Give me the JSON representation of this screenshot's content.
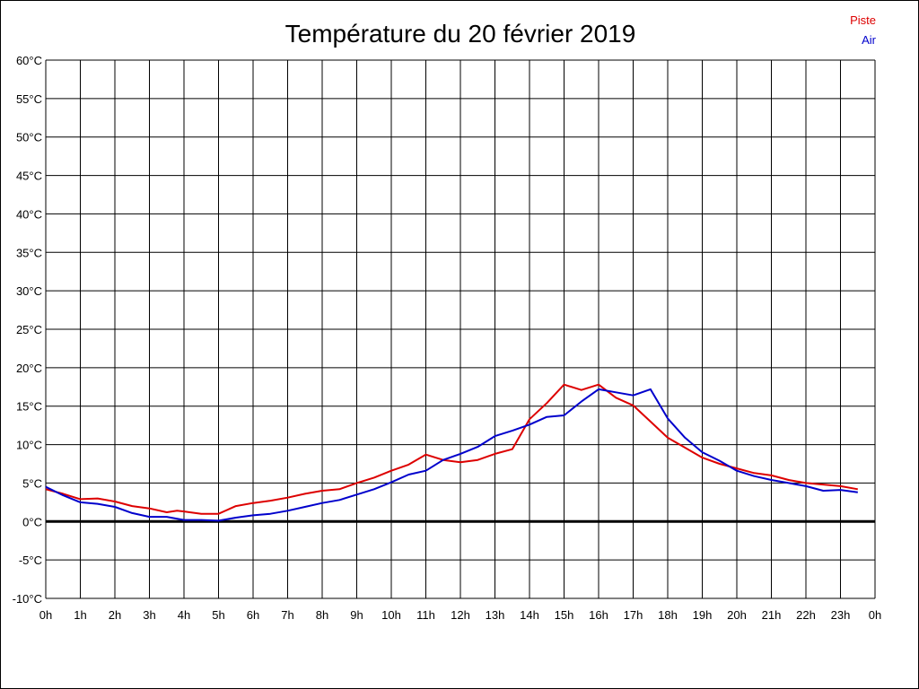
{
  "chart_data": {
    "type": "line",
    "title": "Température du 20 février 2019",
    "x_tick_labels": [
      "0h",
      "1h",
      "2h",
      "3h",
      "4h",
      "5h",
      "6h",
      "7h",
      "8h",
      "9h",
      "10h",
      "11h",
      "12h",
      "13h",
      "14h",
      "15h",
      "16h",
      "17h",
      "18h",
      "19h",
      "20h",
      "21h",
      "22h",
      "23h",
      "0h"
    ],
    "y_tick_labels": [
      "60°C",
      "55°C",
      "50°C",
      "45°C",
      "40°C",
      "35°C",
      "30°C",
      "25°C",
      "20°C",
      "15°C",
      "10°C",
      "5°C",
      "0°C",
      "-5°C",
      "-10°C"
    ],
    "xlim": [
      0,
      24
    ],
    "ylim": [
      -10,
      60
    ],
    "grid": true,
    "legend_position": "top-right",
    "zero_line": true,
    "series": [
      {
        "name": "Piste",
        "color": "#dd0000",
        "points": [
          [
            0.0,
            4.2
          ],
          [
            0.5,
            3.6
          ],
          [
            1.0,
            2.9
          ],
          [
            1.5,
            3.0
          ],
          [
            2.0,
            2.6
          ],
          [
            2.5,
            2.0
          ],
          [
            3.0,
            1.7
          ],
          [
            3.5,
            1.2
          ],
          [
            3.8,
            1.4
          ],
          [
            4.0,
            1.3
          ],
          [
            4.5,
            1.0
          ],
          [
            5.0,
            1.0
          ],
          [
            5.5,
            2.0
          ],
          [
            6.0,
            2.4
          ],
          [
            6.5,
            2.7
          ],
          [
            7.0,
            3.1
          ],
          [
            7.5,
            3.6
          ],
          [
            8.0,
            4.0
          ],
          [
            8.5,
            4.2
          ],
          [
            9.0,
            5.0
          ],
          [
            9.5,
            5.7
          ],
          [
            10.0,
            6.6
          ],
          [
            10.5,
            7.4
          ],
          [
            11.0,
            8.7
          ],
          [
            11.5,
            8.0
          ],
          [
            12.0,
            7.7
          ],
          [
            12.5,
            8.0
          ],
          [
            13.0,
            8.8
          ],
          [
            13.5,
            9.4
          ],
          [
            14.0,
            13.3
          ],
          [
            14.5,
            15.4
          ],
          [
            15.0,
            17.8
          ],
          [
            15.5,
            17.1
          ],
          [
            16.0,
            17.8
          ],
          [
            16.5,
            16.1
          ],
          [
            17.0,
            15.1
          ],
          [
            17.5,
            13.0
          ],
          [
            18.0,
            10.9
          ],
          [
            18.5,
            9.6
          ],
          [
            19.0,
            8.3
          ],
          [
            19.5,
            7.5
          ],
          [
            20.0,
            6.9
          ],
          [
            20.5,
            6.3
          ],
          [
            21.0,
            6.0
          ],
          [
            21.5,
            5.4
          ],
          [
            22.0,
            5.0
          ],
          [
            22.5,
            4.8
          ],
          [
            23.0,
            4.6
          ],
          [
            23.5,
            4.2
          ]
        ]
      },
      {
        "name": "Air",
        "color": "#0000cc",
        "points": [
          [
            0.0,
            4.5
          ],
          [
            0.5,
            3.4
          ],
          [
            1.0,
            2.5
          ],
          [
            1.5,
            2.3
          ],
          [
            2.0,
            1.9
          ],
          [
            2.5,
            1.1
          ],
          [
            3.0,
            0.6
          ],
          [
            3.5,
            0.6
          ],
          [
            4.0,
            0.2
          ],
          [
            4.5,
            0.2
          ],
          [
            5.0,
            0.1
          ],
          [
            5.5,
            0.5
          ],
          [
            6.0,
            0.8
          ],
          [
            6.5,
            1.0
          ],
          [
            7.0,
            1.4
          ],
          [
            7.5,
            1.9
          ],
          [
            8.0,
            2.4
          ],
          [
            8.5,
            2.8
          ],
          [
            9.0,
            3.5
          ],
          [
            9.5,
            4.2
          ],
          [
            10.0,
            5.1
          ],
          [
            10.5,
            6.1
          ],
          [
            11.0,
            6.6
          ],
          [
            11.5,
            8.0
          ],
          [
            12.0,
            8.8
          ],
          [
            12.5,
            9.7
          ],
          [
            13.0,
            11.1
          ],
          [
            13.5,
            11.8
          ],
          [
            14.0,
            12.6
          ],
          [
            14.5,
            13.6
          ],
          [
            15.0,
            13.8
          ],
          [
            15.5,
            15.6
          ],
          [
            16.0,
            17.2
          ],
          [
            16.5,
            16.8
          ],
          [
            17.0,
            16.4
          ],
          [
            17.5,
            17.2
          ],
          [
            18.0,
            13.4
          ],
          [
            18.5,
            10.9
          ],
          [
            19.0,
            9.0
          ],
          [
            19.5,
            7.9
          ],
          [
            20.0,
            6.6
          ],
          [
            20.5,
            5.9
          ],
          [
            21.0,
            5.4
          ],
          [
            21.5,
            5.0
          ],
          [
            22.0,
            4.6
          ],
          [
            22.5,
            4.0
          ],
          [
            23.0,
            4.1
          ],
          [
            23.5,
            3.8
          ]
        ]
      }
    ]
  }
}
